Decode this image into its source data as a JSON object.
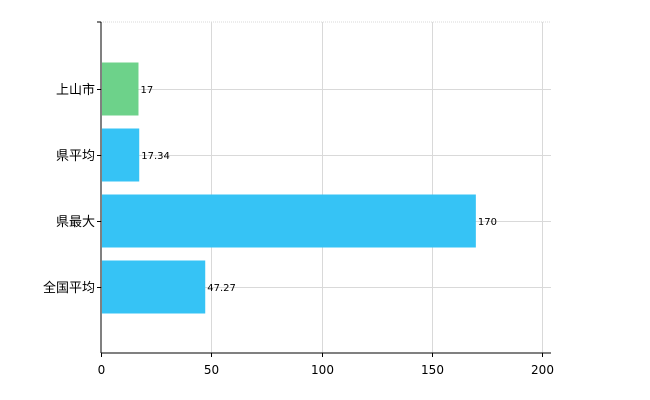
{
  "chart_data": {
    "type": "bar",
    "orientation": "horizontal",
    "categories": [
      "上山市",
      "県平均",
      "県最大",
      "全国平均"
    ],
    "values": [
      17,
      17.34,
      170,
      47.27
    ],
    "data_labels": [
      "17",
      "17.34",
      "170",
      "47.27"
    ],
    "bar_colors": [
      "#6dd28a",
      "#36c3f5",
      "#36c3f5",
      "#36c3f5"
    ],
    "xlim": [
      0,
      200
    ],
    "x_ticks": [
      0,
      50,
      100,
      150,
      200
    ],
    "x_tick_labels": [
      "0",
      "50",
      "100",
      "150",
      "200"
    ],
    "grid": true,
    "legend": "none"
  }
}
